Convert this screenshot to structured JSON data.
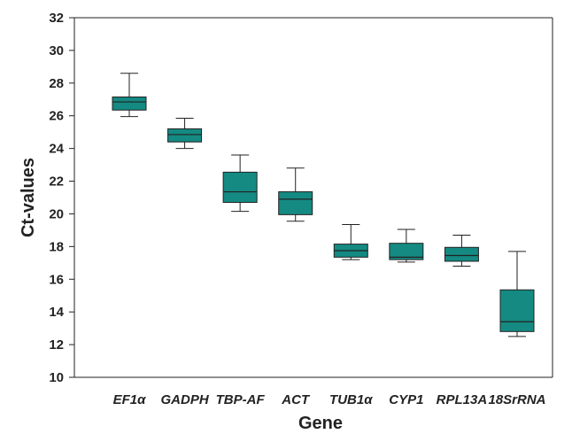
{
  "chart_data": {
    "type": "box",
    "xlabel": "Gene",
    "ylabel": "Ct-values",
    "ylim": [
      10,
      32
    ],
    "yticks": [
      10,
      12,
      14,
      16,
      18,
      20,
      22,
      24,
      26,
      28,
      30,
      32
    ],
    "grid": false,
    "box_color": "#148a82",
    "box_stroke": "#222222",
    "series": [
      {
        "category": "EF1α",
        "min": 25.95,
        "q1": 26.35,
        "median": 26.85,
        "q3": 27.15,
        "max": 28.6
      },
      {
        "category": "GADPH",
        "min": 24.0,
        "q1": 24.4,
        "median": 24.85,
        "q3": 25.2,
        "max": 25.85
      },
      {
        "category": "TBP-AF",
        "min": 20.15,
        "q1": 20.7,
        "median": 21.35,
        "q3": 22.55,
        "max": 23.6
      },
      {
        "category": "ACT",
        "min": 19.55,
        "q1": 19.95,
        "median": 20.9,
        "q3": 21.35,
        "max": 22.8
      },
      {
        "category": "TUB1α",
        "min": 17.2,
        "q1": 17.35,
        "median": 17.75,
        "q3": 18.15,
        "max": 19.35
      },
      {
        "category": "CYP1",
        "min": 17.05,
        "q1": 17.2,
        "median": 17.35,
        "q3": 18.2,
        "max": 19.05
      },
      {
        "category": "RPL13A",
        "min": 16.8,
        "q1": 17.1,
        "median": 17.45,
        "q3": 17.95,
        "max": 18.7
      },
      {
        "category": "18SrRNA",
        "min": 12.5,
        "q1": 12.8,
        "median": 13.4,
        "q3": 15.35,
        "max": 17.7
      }
    ]
  }
}
